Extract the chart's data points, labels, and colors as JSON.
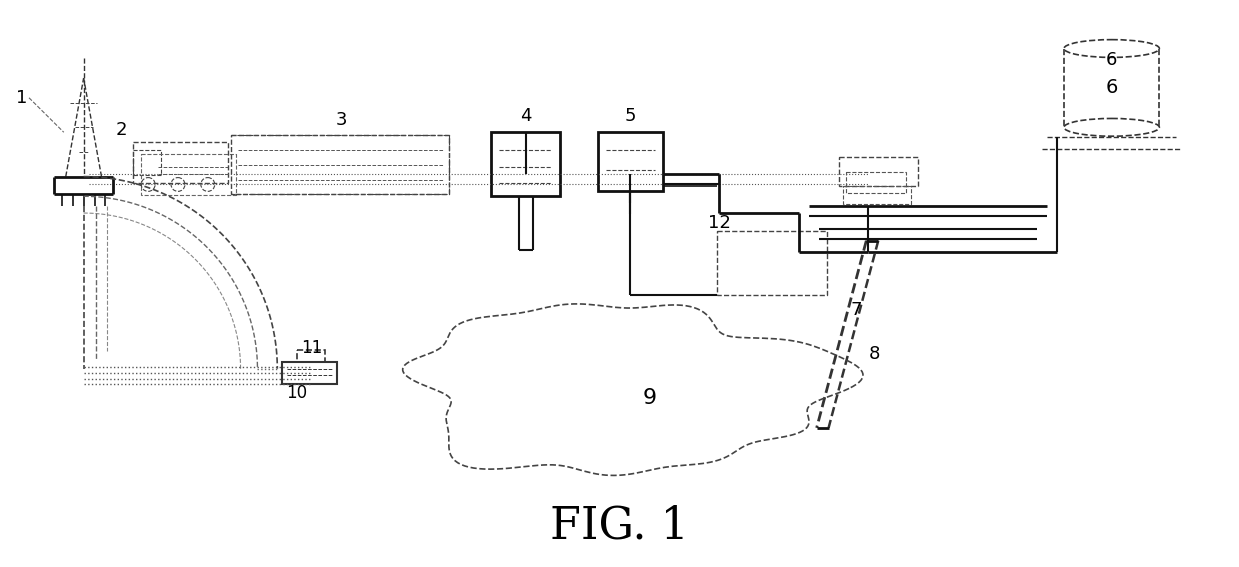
{
  "title": "FIG. 1",
  "title_fontsize": 32,
  "bg": "#ffffff",
  "lc": "#222222",
  "dc": "#555555",
  "fig_w": 12.39,
  "fig_h": 5.67
}
